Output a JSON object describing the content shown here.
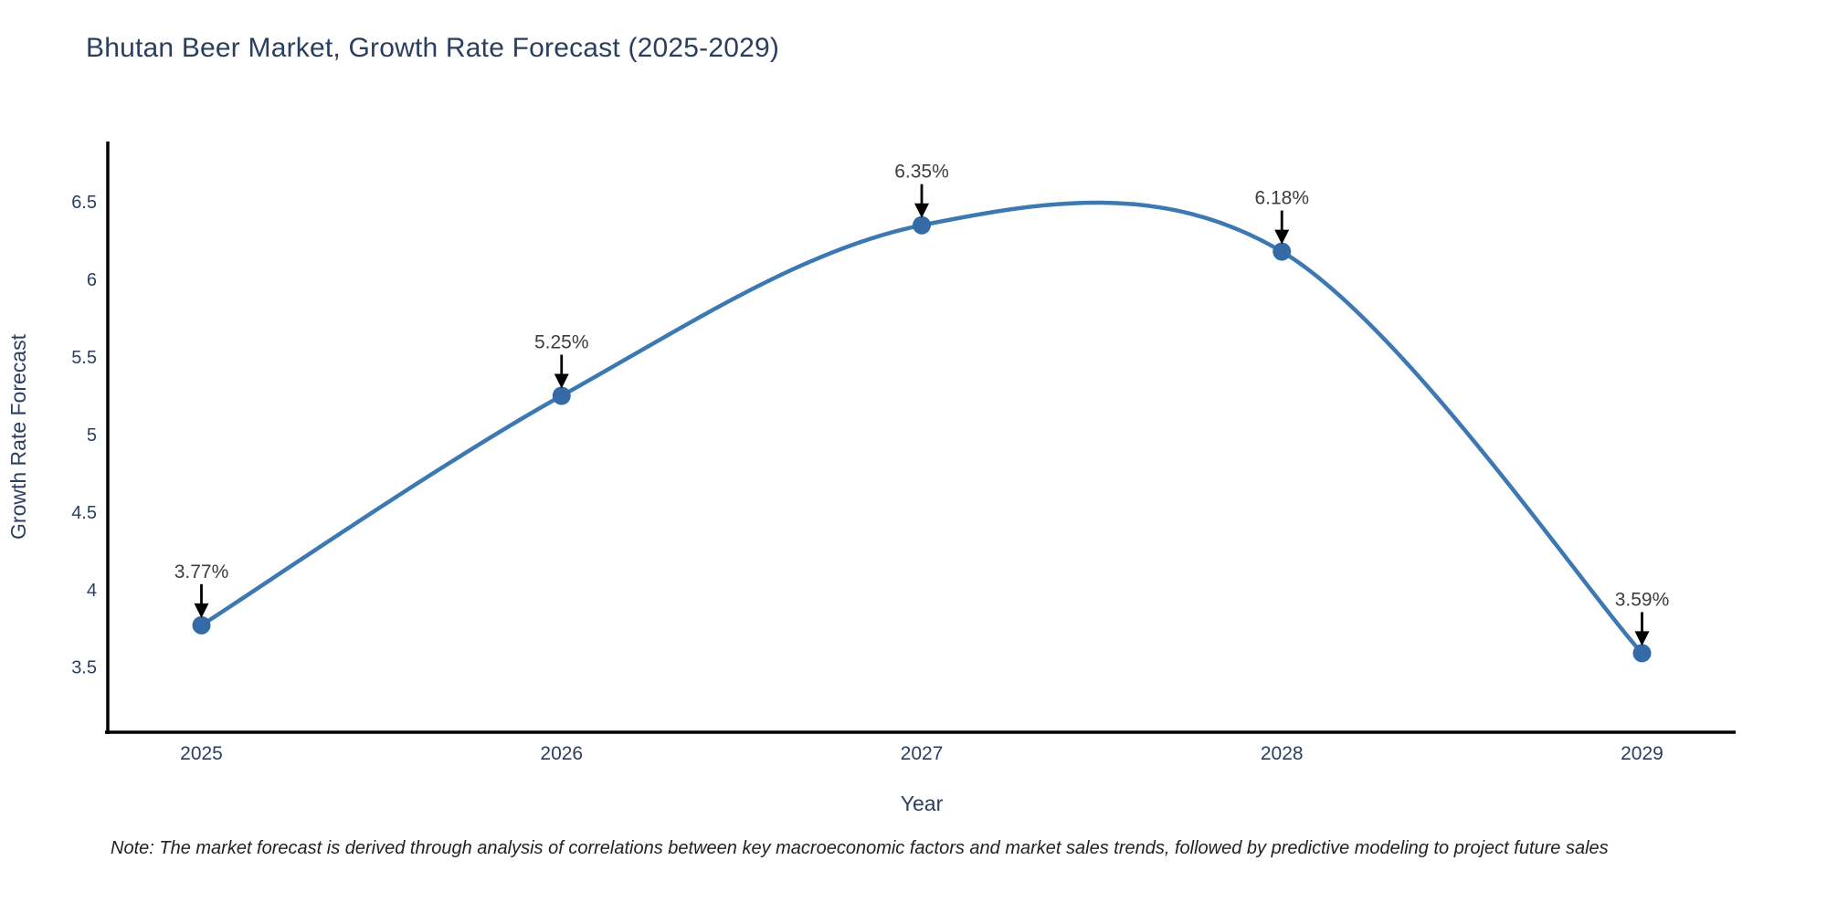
{
  "header": {
    "title": "Bhutan Beer Market, Growth Rate Forecast (2025-2029)"
  },
  "chart_data": {
    "type": "line",
    "title": "Bhutan Beer Market, Growth Rate Forecast (2025-2029)",
    "x": [
      2025,
      2026,
      2027,
      2028,
      2029
    ],
    "series": [
      {
        "name": "Growth Rate Forecast",
        "values": [
          3.77,
          5.25,
          6.35,
          6.18,
          3.59
        ]
      }
    ],
    "point_labels": [
      "3.77%",
      "5.25%",
      "6.35%",
      "6.18%",
      "3.59%"
    ],
    "xlabel": "Year",
    "ylabel": "Growth Rate Forecast",
    "xlim": [
      2024.74,
      2029.26
    ],
    "ylim": [
      3.08,
      6.89
    ],
    "x_ticks": [
      "2025",
      "2026",
      "2027",
      "2028",
      "2029"
    ],
    "x_tick_values": [
      2025,
      2026,
      2027,
      2028,
      2029
    ],
    "y_ticks": [
      "3.5",
      "4",
      "4.5",
      "5",
      "5.5",
      "6",
      "6.5"
    ],
    "y_tick_values": [
      3.5,
      4,
      4.5,
      5,
      5.5,
      6,
      6.5
    ],
    "grid": false,
    "legend": "none",
    "line_shape": "spline",
    "colors": {
      "line": "#3c78b2",
      "marker": "#346ba6",
      "axis_line": "#000000",
      "tick_label": "#2a3f5f",
      "axis_title": "#2a3f5f",
      "chart_title": "#2a3f5f",
      "annotation_text": "#3d3d3d",
      "annotation_arrow": "#000000",
      "background": "#ffffff"
    }
  },
  "note": {
    "text": "Note: The market forecast is derived through analysis of correlations between key macroeconomic factors and market sales trends, followed by predictive modeling to project future sales"
  }
}
